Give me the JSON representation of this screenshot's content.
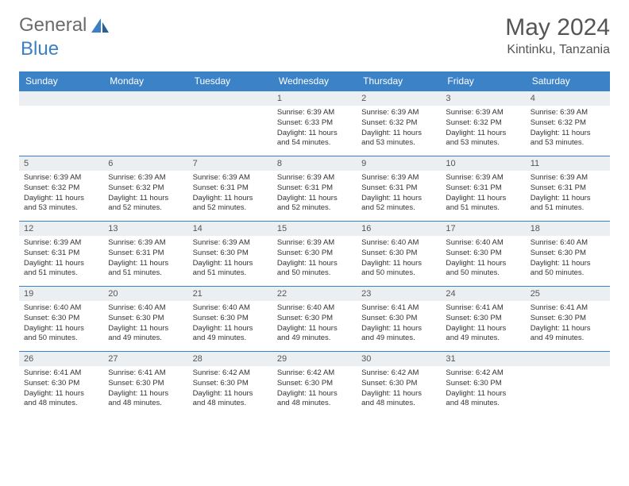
{
  "brand": {
    "part1": "General",
    "part2": "Blue"
  },
  "title": "May 2024",
  "location": "Kintinku, Tanzania",
  "colors": {
    "header_bg": "#3b82c7",
    "header_text": "#ffffff",
    "daynum_bg": "#eceff1",
    "border": "#3b7fc4",
    "text": "#333333",
    "title_text": "#555555"
  },
  "daynames": [
    "Sunday",
    "Monday",
    "Tuesday",
    "Wednesday",
    "Thursday",
    "Friday",
    "Saturday"
  ],
  "weeks": [
    [
      null,
      null,
      null,
      {
        "n": "1",
        "sr": "6:39 AM",
        "ss": "6:33 PM",
        "dl": "11 hours and 54 minutes."
      },
      {
        "n": "2",
        "sr": "6:39 AM",
        "ss": "6:32 PM",
        "dl": "11 hours and 53 minutes."
      },
      {
        "n": "3",
        "sr": "6:39 AM",
        "ss": "6:32 PM",
        "dl": "11 hours and 53 minutes."
      },
      {
        "n": "4",
        "sr": "6:39 AM",
        "ss": "6:32 PM",
        "dl": "11 hours and 53 minutes."
      }
    ],
    [
      {
        "n": "5",
        "sr": "6:39 AM",
        "ss": "6:32 PM",
        "dl": "11 hours and 53 minutes."
      },
      {
        "n": "6",
        "sr": "6:39 AM",
        "ss": "6:32 PM",
        "dl": "11 hours and 52 minutes."
      },
      {
        "n": "7",
        "sr": "6:39 AM",
        "ss": "6:31 PM",
        "dl": "11 hours and 52 minutes."
      },
      {
        "n": "8",
        "sr": "6:39 AM",
        "ss": "6:31 PM",
        "dl": "11 hours and 52 minutes."
      },
      {
        "n": "9",
        "sr": "6:39 AM",
        "ss": "6:31 PM",
        "dl": "11 hours and 52 minutes."
      },
      {
        "n": "10",
        "sr": "6:39 AM",
        "ss": "6:31 PM",
        "dl": "11 hours and 51 minutes."
      },
      {
        "n": "11",
        "sr": "6:39 AM",
        "ss": "6:31 PM",
        "dl": "11 hours and 51 minutes."
      }
    ],
    [
      {
        "n": "12",
        "sr": "6:39 AM",
        "ss": "6:31 PM",
        "dl": "11 hours and 51 minutes."
      },
      {
        "n": "13",
        "sr": "6:39 AM",
        "ss": "6:31 PM",
        "dl": "11 hours and 51 minutes."
      },
      {
        "n": "14",
        "sr": "6:39 AM",
        "ss": "6:30 PM",
        "dl": "11 hours and 51 minutes."
      },
      {
        "n": "15",
        "sr": "6:39 AM",
        "ss": "6:30 PM",
        "dl": "11 hours and 50 minutes."
      },
      {
        "n": "16",
        "sr": "6:40 AM",
        "ss": "6:30 PM",
        "dl": "11 hours and 50 minutes."
      },
      {
        "n": "17",
        "sr": "6:40 AM",
        "ss": "6:30 PM",
        "dl": "11 hours and 50 minutes."
      },
      {
        "n": "18",
        "sr": "6:40 AM",
        "ss": "6:30 PM",
        "dl": "11 hours and 50 minutes."
      }
    ],
    [
      {
        "n": "19",
        "sr": "6:40 AM",
        "ss": "6:30 PM",
        "dl": "11 hours and 50 minutes."
      },
      {
        "n": "20",
        "sr": "6:40 AM",
        "ss": "6:30 PM",
        "dl": "11 hours and 49 minutes."
      },
      {
        "n": "21",
        "sr": "6:40 AM",
        "ss": "6:30 PM",
        "dl": "11 hours and 49 minutes."
      },
      {
        "n": "22",
        "sr": "6:40 AM",
        "ss": "6:30 PM",
        "dl": "11 hours and 49 minutes."
      },
      {
        "n": "23",
        "sr": "6:41 AM",
        "ss": "6:30 PM",
        "dl": "11 hours and 49 minutes."
      },
      {
        "n": "24",
        "sr": "6:41 AM",
        "ss": "6:30 PM",
        "dl": "11 hours and 49 minutes."
      },
      {
        "n": "25",
        "sr": "6:41 AM",
        "ss": "6:30 PM",
        "dl": "11 hours and 49 minutes."
      }
    ],
    [
      {
        "n": "26",
        "sr": "6:41 AM",
        "ss": "6:30 PM",
        "dl": "11 hours and 48 minutes."
      },
      {
        "n": "27",
        "sr": "6:41 AM",
        "ss": "6:30 PM",
        "dl": "11 hours and 48 minutes."
      },
      {
        "n": "28",
        "sr": "6:42 AM",
        "ss": "6:30 PM",
        "dl": "11 hours and 48 minutes."
      },
      {
        "n": "29",
        "sr": "6:42 AM",
        "ss": "6:30 PM",
        "dl": "11 hours and 48 minutes."
      },
      {
        "n": "30",
        "sr": "6:42 AM",
        "ss": "6:30 PM",
        "dl": "11 hours and 48 minutes."
      },
      {
        "n": "31",
        "sr": "6:42 AM",
        "ss": "6:30 PM",
        "dl": "11 hours and 48 minutes."
      },
      null
    ]
  ],
  "labels": {
    "sunrise": "Sunrise:",
    "sunset": "Sunset:",
    "daylight": "Daylight:"
  }
}
